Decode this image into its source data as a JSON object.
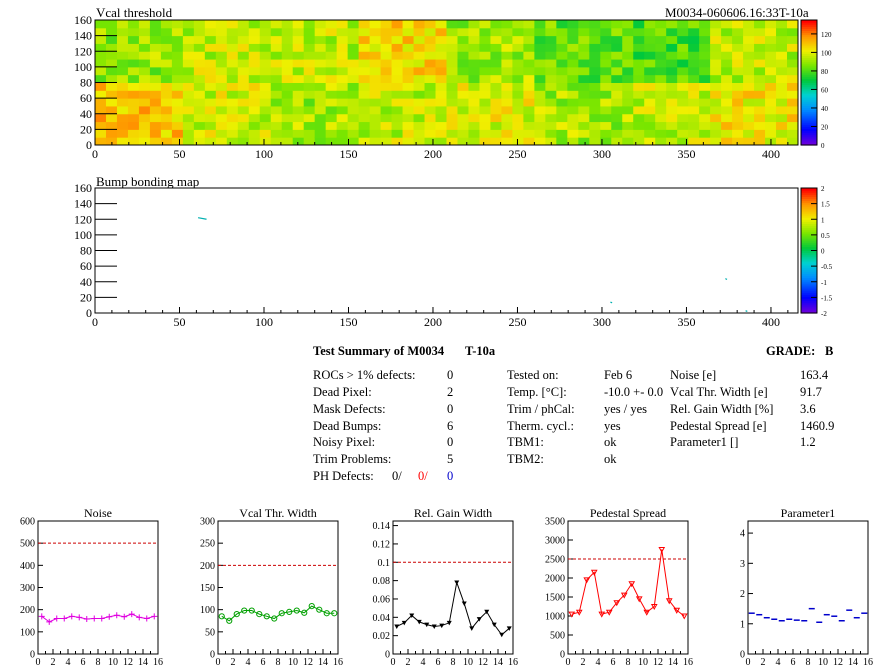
{
  "top_right_label": "M0034-060606.16:33T-10a",
  "colors": {
    "frame": "#000000",
    "red": "#ff0000",
    "blue": "#0000cc",
    "magenta": "#e000e0",
    "green": "#00a000",
    "threshold_line": "#cc0000"
  },
  "chart_data": [
    {
      "type": "heatmap",
      "name": "vcal-threshold",
      "title": "Vcal threshold",
      "xlim": [
        0,
        416
      ],
      "ylim": [
        0,
        160
      ],
      "x_ticks": [
        "0",
        "50",
        "100",
        "150",
        "200",
        "250",
        "300",
        "350",
        "400"
      ],
      "y_ticks": [
        "0",
        "20",
        "40",
        "60",
        "80",
        "100",
        "120",
        "140",
        "160"
      ],
      "z_ticks": [
        "0",
        "20",
        "40",
        "60",
        "80",
        "100",
        "120"
      ],
      "zlim": [
        0,
        135
      ],
      "roc_grid": {
        "cols": 8,
        "rows": 2
      },
      "roc_mean_values": [
        [
          110,
          98,
          92,
          96,
          100,
          92,
          96,
          104
        ],
        [
          90,
          96,
          96,
          108,
          92,
          84,
          80,
          96
        ]
      ]
    },
    {
      "type": "heatmap",
      "name": "bump-bonding-map",
      "title": "Bump bonding map",
      "xlim": [
        0,
        416
      ],
      "ylim": [
        0,
        160
      ],
      "x_ticks": [
        "0",
        "50",
        "100",
        "150",
        "200",
        "250",
        "300",
        "350",
        "400"
      ],
      "y_ticks": [
        "0",
        "20",
        "40",
        "60",
        "80",
        "100",
        "120",
        "140",
        "160"
      ],
      "z_ticks": [
        "-2",
        "-1.5",
        "-1",
        "-0.5",
        "0",
        "0.5",
        "1",
        "1.5",
        "2"
      ],
      "zlim": [
        -2,
        2
      ],
      "marks": [
        {
          "x1": 61,
          "y1": 122,
          "x2": 66,
          "y2": 120
        },
        {
          "x1": 305,
          "y1": 14,
          "x2": 306,
          "y2": 13
        },
        {
          "x1": 373,
          "y1": 44,
          "x2": 374,
          "y2": 43
        },
        {
          "x1": 385,
          "y1": 3,
          "x2": 386,
          "y2": 2
        }
      ]
    },
    {
      "type": "line",
      "name": "noise",
      "title": "Noise",
      "x": [
        0,
        1,
        2,
        3,
        4,
        5,
        6,
        7,
        8,
        9,
        10,
        11,
        12,
        13,
        14,
        15
      ],
      "values": [
        170,
        145,
        160,
        160,
        170,
        165,
        158,
        160,
        160,
        168,
        175,
        168,
        180,
        165,
        160,
        170
      ],
      "ylim": [
        0,
        600
      ],
      "y_ticks": [
        "0",
        "100",
        "200",
        "300",
        "400",
        "500",
        "600"
      ],
      "x_ticks": [
        "0",
        "2",
        "4",
        "6",
        "8",
        "10",
        "12",
        "14",
        "16"
      ],
      "threshold": 500,
      "marker": "cross"
    },
    {
      "type": "line",
      "name": "vcal-thr-width",
      "title": "Vcal Thr. Width",
      "x": [
        0,
        1,
        2,
        3,
        4,
        5,
        6,
        7,
        8,
        9,
        10,
        11,
        12,
        13,
        14,
        15
      ],
      "values": [
        85,
        75,
        90,
        98,
        98,
        90,
        85,
        80,
        92,
        95,
        98,
        93,
        108,
        100,
        92,
        92
      ],
      "ylim": [
        0,
        300
      ],
      "y_ticks": [
        "0",
        "50",
        "100",
        "150",
        "200",
        "250",
        "300"
      ],
      "x_ticks": [
        "0",
        "2",
        "4",
        "6",
        "8",
        "10",
        "12",
        "14",
        "16"
      ],
      "threshold": 200,
      "marker": "circle"
    },
    {
      "type": "line",
      "name": "rel-gain-width",
      "title": "Rel. Gain Width",
      "x": [
        0,
        1,
        2,
        3,
        4,
        5,
        6,
        7,
        8,
        9,
        10,
        11,
        12,
        13,
        14,
        15
      ],
      "values": [
        0.03,
        0.034,
        0.042,
        0.035,
        0.032,
        0.03,
        0.031,
        0.034,
        0.078,
        0.055,
        0.028,
        0.038,
        0.046,
        0.032,
        0.021,
        0.028
      ],
      "ylim": [
        0,
        0.145
      ],
      "y_ticks": [
        "0",
        "0.02",
        "0.04",
        "0.06",
        "0.08",
        "0.1",
        "0.12",
        "0.14"
      ],
      "x_ticks": [
        "0",
        "2",
        "4",
        "6",
        "8",
        "10",
        "12",
        "14",
        "16"
      ],
      "threshold": 0.1,
      "marker": "triangle"
    },
    {
      "type": "line",
      "name": "pedestal-spread",
      "title": "Pedestal Spread",
      "x": [
        0,
        1,
        2,
        3,
        4,
        5,
        6,
        7,
        8,
        9,
        10,
        11,
        12,
        13,
        14,
        15
      ],
      "values": [
        1050,
        1100,
        1950,
        2150,
        1050,
        1100,
        1350,
        1550,
        1850,
        1450,
        1100,
        1250,
        2750,
        1400,
        1150,
        1000
      ],
      "ylim": [
        0,
        3500
      ],
      "y_ticks": [
        "0",
        "500",
        "1000",
        "1500",
        "2000",
        "2500",
        "3000",
        "3500"
      ],
      "x_ticks": [
        "0",
        "2",
        "4",
        "6",
        "8",
        "10",
        "12",
        "14",
        "16"
      ],
      "threshold": 2500,
      "marker": "star"
    },
    {
      "type": "scatter",
      "name": "parameter1",
      "title": "Parameter1",
      "x": [
        0,
        1,
        2,
        3,
        4,
        5,
        6,
        7,
        8,
        9,
        10,
        11,
        12,
        13,
        14,
        15
      ],
      "values": [
        1.35,
        1.3,
        1.2,
        1.15,
        1.1,
        1.15,
        1.12,
        1.1,
        1.5,
        1.05,
        1.3,
        1.25,
        1.1,
        1.45,
        1.2,
        1.35
      ],
      "ylim": [
        0,
        4.4
      ],
      "y_ticks": [
        "0",
        "1",
        "2",
        "3",
        "4"
      ],
      "x_ticks": [
        "0",
        "2",
        "4",
        "6",
        "8",
        "10",
        "12",
        "14",
        "16"
      ],
      "marker": "hbar"
    }
  ],
  "summary": {
    "title": "Test Summary of M0034",
    "temp_code": "T-10a",
    "grade_label": "GRADE:",
    "grade_value": "B",
    "col1": [
      {
        "label": "ROCs > 1% defects:",
        "value": "0"
      },
      {
        "label": "Dead Pixel:",
        "value": "2"
      },
      {
        "label": "Mask Defects:",
        "value": "0"
      },
      {
        "label": "Dead Bumps:",
        "value": "6"
      },
      {
        "label": "Noisy Pixel:",
        "value": "0"
      },
      {
        "label": "Trim Problems:",
        "value": "5"
      }
    ],
    "ph_defects": {
      "label": "PH Defects:",
      "v1": "0/",
      "v2": "0/",
      "v3": "0"
    },
    "col2": [
      {
        "label": "Tested on:",
        "value": "Feb 6"
      },
      {
        "label": "Temp. [°C]:",
        "value": "-10.0 +- 0.0"
      },
      {
        "label": "Trim / phCal:",
        "value": "yes / yes"
      },
      {
        "label": "Therm. cycl.:",
        "value": "yes"
      },
      {
        "label": "TBM1:",
        "value": "ok"
      },
      {
        "label": "TBM2:",
        "value": "ok"
      }
    ],
    "col3": [
      {
        "label": "Noise [e]",
        "value": "163.4"
      },
      {
        "label": "Vcal Thr. Width [e]",
        "value": "91.7"
      },
      {
        "label": "Rel. Gain Width [%]",
        "value": "3.6"
      },
      {
        "label": "Pedestal Spread [e]",
        "value": "1460.9"
      },
      {
        "label": "Parameter1 []",
        "value": "1.2"
      }
    ]
  }
}
